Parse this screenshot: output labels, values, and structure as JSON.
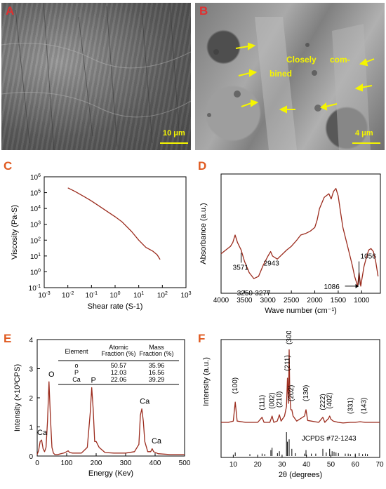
{
  "panels": {
    "a": {
      "letter": "A",
      "letter_color": "#e03030",
      "scale_bar": "10 μm"
    },
    "b": {
      "letter": "B",
      "letter_color": "#e03030",
      "scale_bar": "4 μm",
      "annotation_closely": "Closely",
      "annotation_com": "com-",
      "annotation_bined": "bined"
    },
    "c": {
      "letter": "C",
      "letter_color": "#e05a20"
    },
    "d": {
      "letter": "D",
      "letter_color": "#e05a20"
    },
    "e": {
      "letter": "E",
      "letter_color": "#e05a20"
    },
    "f": {
      "letter": "F",
      "letter_color": "#e05a20"
    }
  },
  "colors": {
    "curve": "#9b2b1d",
    "annotation": "#f5f500",
    "axis": "#000000"
  },
  "chart_data": [
    {
      "panel": "C",
      "type": "line",
      "xlabel": "Shear rate (S-1)",
      "ylabel": "Viscosity (Pa·S)",
      "x_scale": "log",
      "y_scale": "log",
      "xlim": [
        0.001,
        1000
      ],
      "ylim": [
        0.1,
        1000000
      ],
      "x_ticks": [
        {
          "base": "10",
          "exp": "-3"
        },
        {
          "base": "10",
          "exp": "-2"
        },
        {
          "base": "10",
          "exp": "-1"
        },
        {
          "base": "10",
          "exp": "0"
        },
        {
          "base": "10",
          "exp": "1"
        },
        {
          "base": "10",
          "exp": "2"
        },
        {
          "base": "10",
          "exp": "3"
        }
      ],
      "y_ticks": [
        {
          "base": "10",
          "exp": "-1"
        },
        {
          "base": "10",
          "exp": "0"
        },
        {
          "base": "10",
          "exp": "1"
        },
        {
          "base": "10",
          "exp": "2"
        },
        {
          "base": "10",
          "exp": "3"
        },
        {
          "base": "10",
          "exp": "4"
        },
        {
          "base": "10",
          "exp": "5"
        },
        {
          "base": "10",
          "exp": "6"
        }
      ],
      "x": [
        0.01,
        0.02,
        0.05,
        0.1,
        0.2,
        0.5,
        1,
        2,
        5,
        10,
        20,
        40,
        60,
        80
      ],
      "y": [
        200000,
        120000,
        55000,
        30000,
        15000,
        6000,
        3000,
        1400,
        350,
        100,
        35,
        20,
        12,
        6
      ]
    },
    {
      "panel": "D",
      "type": "line",
      "xlabel": "Wave number (cm⁻¹)",
      "ylabel": "Absorbance (a.u.)",
      "x_reversed": true,
      "xlim": [
        4000,
        600
      ],
      "x_ticks": [
        "4000",
        "3500",
        "3000",
        "2500",
        "2000",
        "1500",
        "1000"
      ],
      "x": [
        4000,
        3900,
        3800,
        3750,
        3700,
        3650,
        3571,
        3500,
        3400,
        3300,
        3200,
        3100,
        3000,
        2943,
        2900,
        2800,
        2600,
        2500,
        2400,
        2300,
        2200,
        2100,
        2000,
        1950,
        1900,
        1800,
        1700,
        1650,
        1600,
        1550,
        1500,
        1450,
        1400,
        1300,
        1200,
        1150,
        1086,
        1056,
        1020,
        950,
        900,
        850,
        800,
        750,
        700,
        650
      ],
      "y": [
        0.45,
        0.5,
        0.55,
        0.6,
        0.7,
        0.6,
        0.5,
        0.35,
        0.2,
        0.12,
        0.15,
        0.3,
        0.42,
        0.48,
        0.42,
        0.38,
        0.5,
        0.55,
        0.62,
        0.7,
        0.72,
        0.75,
        0.8,
        0.9,
        1.05,
        1.2,
        1.25,
        1.18,
        1.28,
        1.32,
        1.22,
        1.0,
        0.8,
        0.55,
        0.3,
        0.15,
        0.02,
        0.2,
        0.02,
        0.28,
        0.4,
        0.5,
        0.52,
        0.48,
        0.35,
        0.15
      ],
      "annotations": [
        "3571",
        "3250-3277",
        "2943",
        "1056",
        "1086"
      ]
    },
    {
      "panel": "E",
      "type": "line",
      "xlabel": "Energy (Kev)",
      "ylabel": "Intensity (×10³CPS)",
      "xlim": [
        0,
        500
      ],
      "ylim": [
        0,
        4
      ],
      "x_ticks": [
        "0",
        "100",
        "200",
        "300",
        "400",
        "500"
      ],
      "y_ticks": [
        "0",
        "1",
        "2",
        "3",
        "4"
      ],
      "x": [
        0,
        5,
        10,
        15,
        20,
        25,
        30,
        35,
        40,
        45,
        50,
        55,
        60,
        70,
        80,
        90,
        100,
        105,
        110,
        120,
        150,
        170,
        180,
        185,
        190,
        195,
        200,
        210,
        230,
        260,
        300,
        330,
        345,
        350,
        355,
        360,
        365,
        375,
        385,
        390,
        395,
        410,
        450,
        500
      ],
      "y": [
        0.05,
        0.2,
        0.5,
        0.55,
        0.25,
        0.15,
        0.3,
        1.2,
        2.55,
        1.3,
        0.3,
        0.1,
        0.05,
        0.05,
        0.08,
        0.1,
        0.15,
        0.18,
        0.12,
        0.1,
        0.1,
        0.3,
        1.5,
        2.35,
        1.6,
        0.5,
        0.5,
        0.3,
        0.12,
        0.1,
        0.1,
        0.15,
        0.4,
        1.4,
        1.62,
        1.2,
        0.5,
        0.15,
        0.15,
        0.25,
        0.15,
        0.08,
        0.05,
        0.05
      ],
      "peak_labels": [
        "Ca",
        "O",
        "P",
        "Ca",
        "Ca"
      ],
      "table": {
        "headers": [
          "Element",
          "Atomic\nFraction (%)",
          "Mass\nFraction (%)"
        ],
        "rows": [
          [
            "o",
            "50.57",
            "35.96"
          ],
          [
            "P",
            "12.03",
            "16.56"
          ],
          [
            "Ca",
            "22.06",
            "39.29"
          ]
        ]
      }
    },
    {
      "panel": "F",
      "type": "line",
      "xlabel": "2θ (degrees)",
      "ylabel": "Intensity (a.u.)",
      "xlim": [
        5,
        70
      ],
      "x_ticks": [
        "10",
        "20",
        "30",
        "40",
        "50",
        "60",
        "70"
      ],
      "x": [
        5,
        8,
        10,
        10.8,
        11.6,
        15,
        20,
        21.8,
        22.6,
        25,
        25.9,
        26.6,
        28,
        28.9,
        29.6,
        31,
        31.8,
        32.2,
        32.6,
        32.9,
        33.2,
        33.6,
        34,
        34.5,
        36,
        39.2,
        39.8,
        40.5,
        45,
        46.7,
        47.5,
        49,
        49.5,
        50,
        51,
        53,
        55,
        58,
        60,
        62,
        64,
        66,
        68,
        70
      ],
      "y": [
        0.3,
        0.3,
        0.32,
        0.62,
        0.32,
        0.3,
        0.3,
        0.38,
        0.3,
        0.3,
        0.4,
        0.3,
        0.32,
        0.42,
        0.32,
        0.4,
        0.55,
        1.0,
        0.6,
        1.45,
        0.7,
        0.5,
        0.5,
        0.4,
        0.32,
        0.4,
        0.5,
        0.33,
        0.3,
        0.38,
        0.3,
        0.36,
        0.4,
        0.35,
        0.32,
        0.3,
        0.29,
        0.3,
        0.3,
        0.31,
        0.3,
        0.3,
        0.3,
        0.3
      ],
      "peak_labels": [
        "(100)",
        "(111)",
        "(002)",
        "(210)",
        "(211)",
        "(300)",
        "(202)",
        "(130)",
        "(222)",
        "(402)",
        "(331)",
        "(143)"
      ],
      "reference_label": "JCPDS #72-1243",
      "reference_x": [
        10.8,
        16.8,
        21.8,
        22.9,
        25.4,
        25.9,
        28.1,
        28.9,
        31.8,
        32.2,
        32.9,
        34.0,
        35.5,
        39.2,
        39.8,
        42.0,
        43.8,
        46.7,
        48.1,
        49.5,
        50.5,
        51.3,
        52.1,
        53.1,
        55.9,
        57.1,
        58.0,
        60.0,
        61.6,
        63.0,
        64.1,
        65.0
      ],
      "reference_h": [
        0.15,
        0.08,
        0.1,
        0.08,
        0.25,
        0.35,
        0.12,
        0.2,
        1.0,
        0.6,
        0.7,
        0.3,
        0.12,
        0.1,
        0.25,
        0.1,
        0.1,
        0.3,
        0.15,
        0.3,
        0.2,
        0.18,
        0.15,
        0.12,
        0.1,
        0.1,
        0.08,
        0.1,
        0.12,
        0.08,
        0.1,
        0.08
      ]
    }
  ]
}
